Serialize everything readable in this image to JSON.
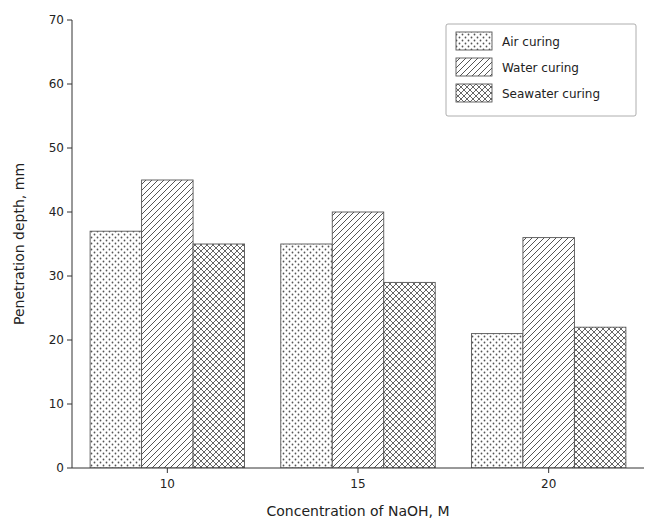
{
  "chart_data": {
    "type": "bar",
    "xlabel": "Concentration of NaOH, M",
    "ylabel": "Penetration depth, mm",
    "categories": [
      "10",
      "15",
      "20"
    ],
    "series": [
      {
        "name": "Air curing",
        "values": [
          37,
          35,
          21
        ]
      },
      {
        "name": "Water curing",
        "values": [
          45,
          40,
          36
        ]
      },
      {
        "name": "Seawater curing",
        "values": [
          35,
          29,
          22
        ]
      }
    ],
    "color": "#555555",
    "ylim": [
      0,
      70
    ],
    "yticks": [
      0,
      10,
      20,
      30,
      40,
      50,
      60,
      70
    ],
    "grid": false,
    "legend": "upper right"
  }
}
